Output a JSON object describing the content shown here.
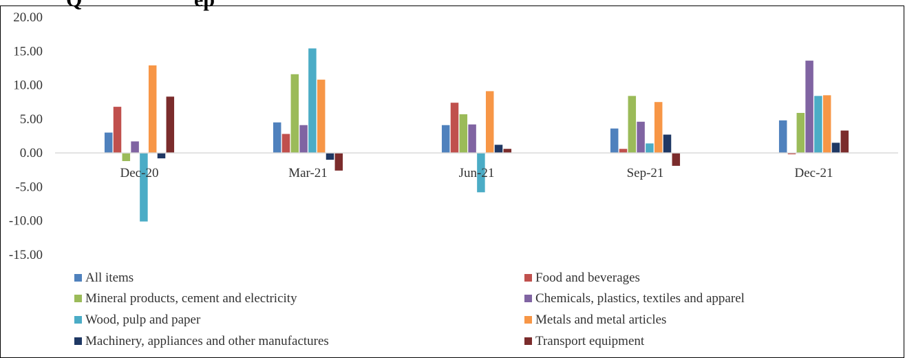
{
  "title_fragment": "Q",
  "title_fragment_2": "ep",
  "chart_data": {
    "type": "bar",
    "categories": [
      "Dec-20",
      "Mar-21",
      "Jun-21",
      "Sep-21",
      "Dec-21"
    ],
    "ylim": [
      -15,
      20
    ],
    "yticks": [
      "20.00",
      "15.00",
      "10.00",
      "5.00",
      "0.00",
      "-5.00",
      "-10.00",
      "-15.00"
    ],
    "ytick_values": [
      20,
      15,
      10,
      5,
      0,
      -5,
      -10,
      -15
    ],
    "grid": false,
    "legend_position": "bottom",
    "series": [
      {
        "name": "All items",
        "color": "#4F81BD",
        "values": [
          3.0,
          4.5,
          4.1,
          3.6,
          4.8
        ]
      },
      {
        "name": "Food and beverages",
        "color": "#C0504D",
        "values": [
          6.8,
          2.8,
          7.4,
          0.6,
          -0.2
        ]
      },
      {
        "name": "Mineral products, cement and electricity",
        "color": "#9BBB59",
        "values": [
          -1.2,
          11.6,
          5.7,
          8.4,
          5.9
        ]
      },
      {
        "name": "Chemicals, plastics, textiles and apparel",
        "color": "#8064A2",
        "values": [
          1.7,
          4.1,
          4.2,
          4.6,
          13.6
        ]
      },
      {
        "name": "Wood, pulp and paper",
        "color": "#4BACC6",
        "values": [
          -10.1,
          15.4,
          -5.8,
          1.4,
          8.4
        ]
      },
      {
        "name": "Metals and metal articles",
        "color": "#F79646",
        "values": [
          12.9,
          10.8,
          9.1,
          7.5,
          8.5
        ]
      },
      {
        "name": "Machinery, appliances and other manufactures",
        "color": "#1F3864",
        "values": [
          -0.8,
          -1.0,
          1.2,
          2.7,
          1.5
        ]
      },
      {
        "name": "Transport equipment",
        "color": "#7B2C2C",
        "values": [
          8.3,
          -2.6,
          0.6,
          -1.9,
          3.3
        ]
      }
    ]
  }
}
